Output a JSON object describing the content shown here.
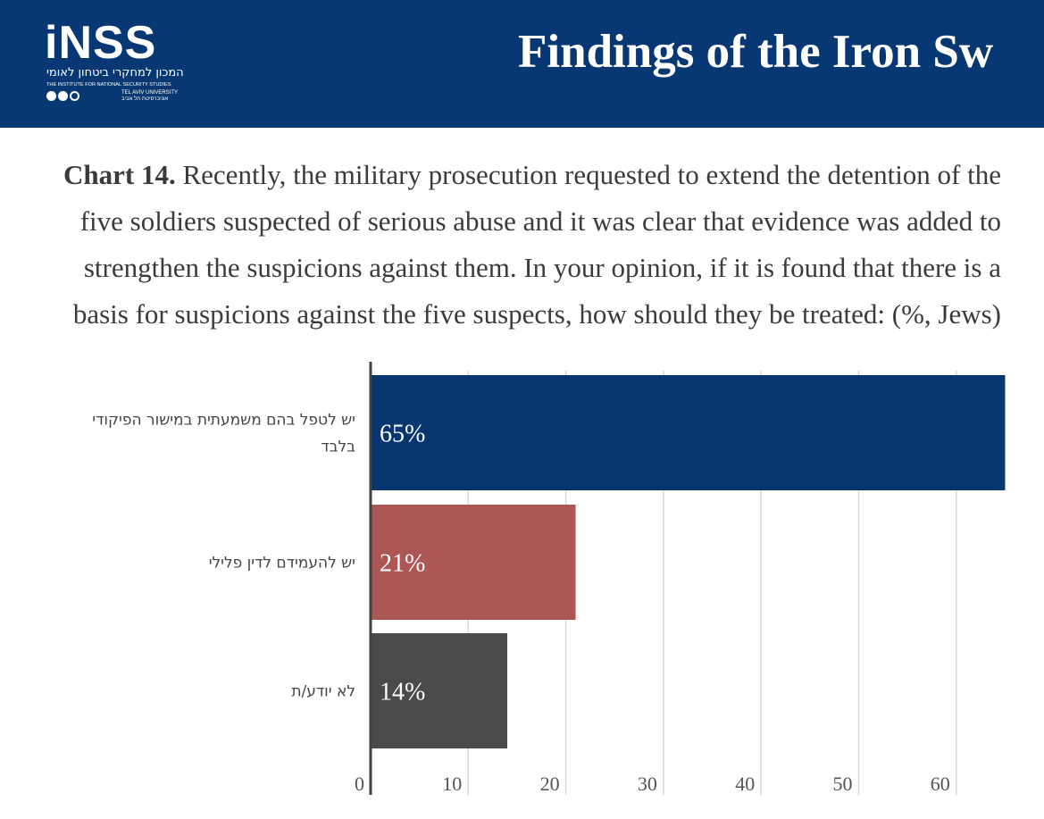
{
  "header": {
    "logo": {
      "mark": "iNSS",
      "hebrew_name": "המכון למחקרי ביטחון לאומי",
      "english_name": "THE INSTITUTE FOR NATIONAL SECURITY STUDIES",
      "university_en": "TEL AVIV UNIVERSITY",
      "university_he": "אוניברסיטת תל אביב"
    },
    "title": "Findings of the Iron Sw"
  },
  "caption": {
    "label": "Chart 14.",
    "text": " Recently, the military prosecution requested to extend the detention of the five soldiers suspected of serious abuse and it was clear that evidence was added to strengthen the suspicions against them. In your opinion, if it is found that there is a basis for suspicions against the five suspects, how should they be treated: (%, Jews)"
  },
  "colors": {
    "header_bg": "#083874",
    "bar_1": "#073671",
    "bar_2": "#ad5656",
    "bar_3": "#4a4a4a",
    "grid": "#d9d9d9",
    "axis": "#404040"
  },
  "chart_data": {
    "type": "bar",
    "orientation": "horizontal",
    "title": "Chart 14. Recently, the military prosecution requested to extend the detention of the five soldiers suspected of serious abuse and it was clear that evidence was added to strengthen the suspicions against them. In your opinion, if it is found that there is a basis for suspicions against the five suspects, how should they be treated: (%, Jews)",
    "categories": [
      [
        "יש לטפל בהם משמעתית במישור הפיקודי",
        "בלבד"
      ],
      [
        "יש להעמידם לדין פלילי"
      ],
      [
        "לא יודע/ת"
      ]
    ],
    "values": [
      65,
      21,
      14
    ],
    "data_labels": [
      "65%",
      "21%",
      "14%"
    ],
    "xlabel": "",
    "ylabel": "",
    "xlim": [
      0,
      65
    ],
    "xticks": [
      0,
      10,
      20,
      30,
      40,
      50,
      60
    ],
    "grid": true,
    "legend": "none"
  }
}
